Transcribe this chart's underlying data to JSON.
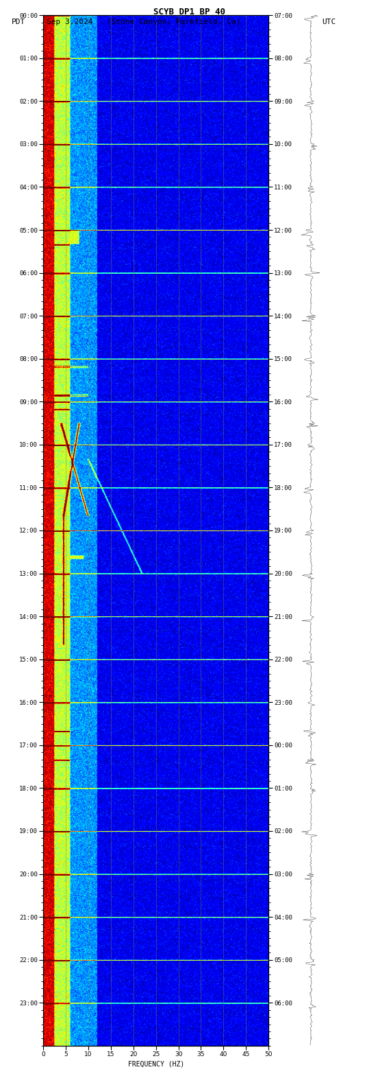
{
  "title_line1": "SCYB DP1 BP 40",
  "title_line2_left": "PDT",
  "title_line2_center": "Sep 3,2024   (Stone Canyon, Parkfield, Ca)",
  "title_line2_right": "UTC",
  "xlabel": "FREQUENCY (HZ)",
  "freq_min": 0,
  "freq_max": 50,
  "freq_ticks": [
    0,
    5,
    10,
    15,
    20,
    25,
    30,
    35,
    40,
    45,
    50
  ],
  "pdt_labels": [
    "00:00",
    "01:00",
    "02:00",
    "03:00",
    "04:00",
    "05:00",
    "06:00",
    "07:00",
    "08:00",
    "09:00",
    "10:00",
    "11:00",
    "12:00",
    "13:00",
    "14:00",
    "15:00",
    "16:00",
    "17:00",
    "18:00",
    "19:00",
    "20:00",
    "21:00",
    "22:00",
    "23:00"
  ],
  "utc_labels": [
    "07:00",
    "08:00",
    "09:00",
    "10:00",
    "11:00",
    "12:00",
    "13:00",
    "14:00",
    "15:00",
    "16:00",
    "17:00",
    "18:00",
    "19:00",
    "20:00",
    "21:00",
    "22:00",
    "23:00",
    "00:00",
    "01:00",
    "02:00",
    "03:00",
    "04:00",
    "05:00",
    "06:00"
  ],
  "num_time_rows": 1440,
  "background_color": "#ffffff",
  "fig_width": 5.52,
  "fig_height": 15.84,
  "dpi": 100,
  "vgrid_color": "#808040",
  "vgrid_alpha": 0.6,
  "vgrid_lw": 0.5
}
